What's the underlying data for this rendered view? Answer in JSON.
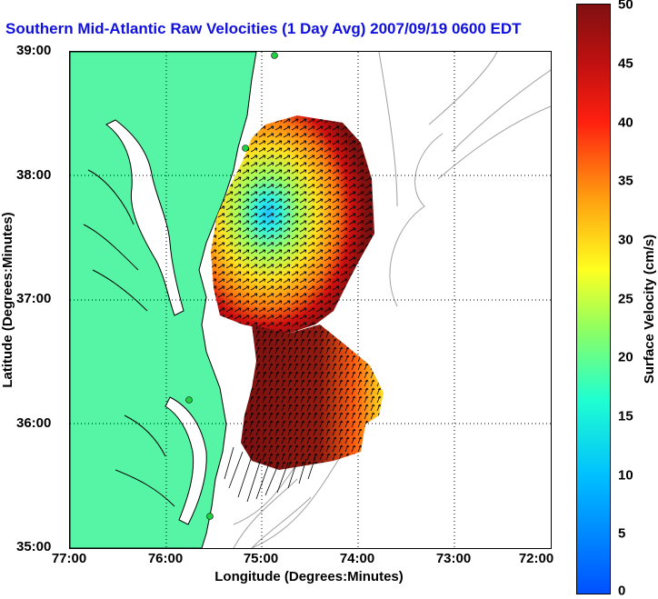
{
  "title": "Southern Mid-Atlantic Raw Velocities (1 Day Avg) 2007/09/19 0600 EDT",
  "axes": {
    "x_label": "Longitude (Degrees:Minutes)",
    "y_label": "Latitude (Degrees:Minutes)",
    "x_ticks": [
      "77:00",
      "76:00",
      "75:00",
      "74:00",
      "73:00",
      "72:00"
    ],
    "y_ticks": [
      "39:00",
      "38:00",
      "37:00",
      "36:00",
      "35:00"
    ]
  },
  "colorbar": {
    "label": "Surface Velocity (cm/s)",
    "ticks": [
      "50",
      "45",
      "40",
      "35",
      "30",
      "25",
      "20",
      "15",
      "10",
      "5",
      "0"
    ],
    "min": 0,
    "max": 50
  },
  "colors": {
    "title": "#1010e0",
    "land": "#55f5a5",
    "coastline": "#000000",
    "bathymetry": "#a0a0a0",
    "grid": "#000000",
    "station": "#20d040"
  },
  "map": {
    "extent": {
      "lon": [
        -77,
        -72
      ],
      "lat": [
        35,
        39
      ]
    },
    "grid": "dotted",
    "features": [
      "land",
      "coastline",
      "bathymetry-contours",
      "hf-radar-stations",
      "velocity-vectors",
      "eddy"
    ]
  }
}
